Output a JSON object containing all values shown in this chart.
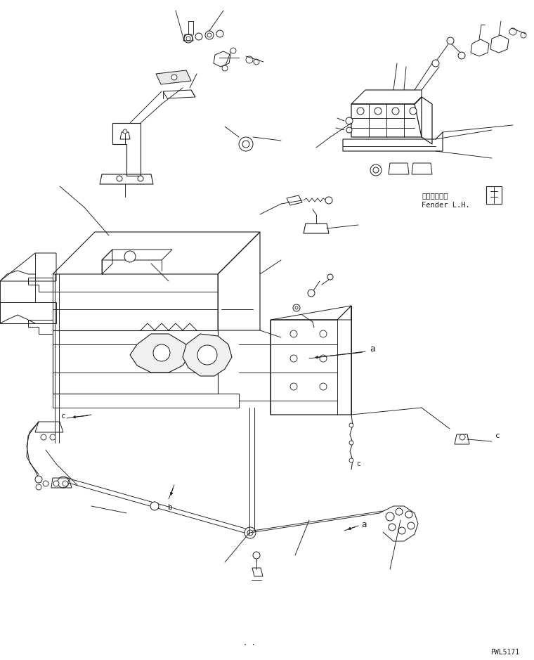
{
  "background_color": "#ffffff",
  "line_color": "#1a1a1a",
  "fig_width": 7.6,
  "fig_height": 9.39,
  "dpi": 100,
  "label_fender_jp": "フェンダ　左",
  "label_fender_en": "Fender L.H.",
  "label_code": "PWL5171",
  "label_dots": ". ."
}
